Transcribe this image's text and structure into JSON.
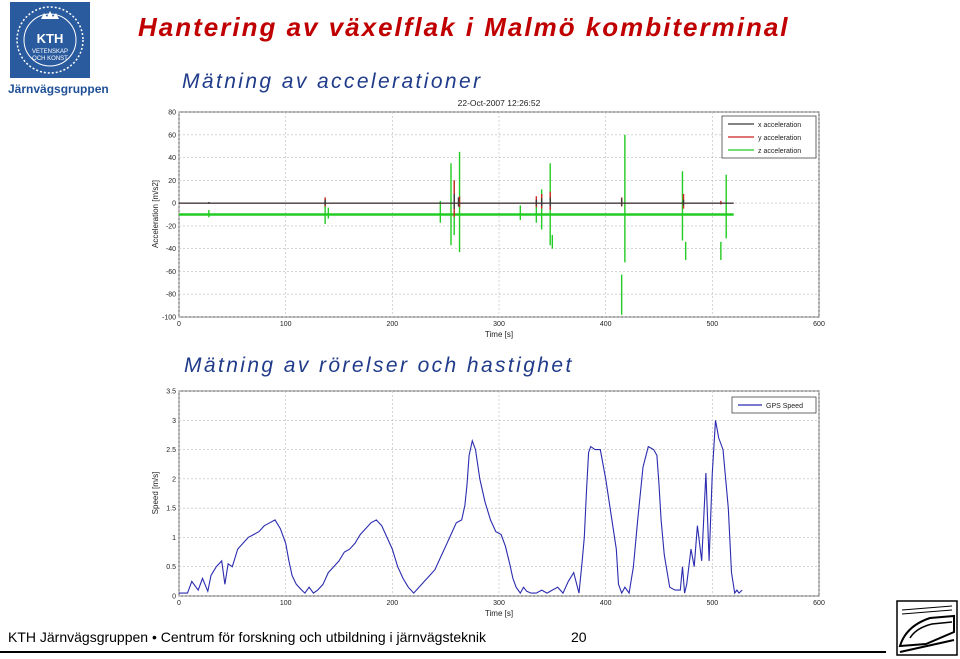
{
  "header": {
    "brand": "Järnvägsgruppen",
    "logo_text": [
      "KTH",
      "VETENSKAP",
      "OCH KONST"
    ],
    "title": "Hantering av växelflak i Malmö kombiterminal"
  },
  "sections": {
    "acc_heading": "Mätning av accelerationer",
    "speed_heading": "Mätning av rörelser och hastighet"
  },
  "footer": {
    "text": "KTH Järnvägsgruppen • Centrum för forskning och utbildning i järnvägsteknik",
    "page": "20"
  },
  "chart_data": [
    {
      "type": "line",
      "title": "22-Oct-2007 12:26:52",
      "xlabel": "Time [s]",
      "ylabel": "Acceleration [m/s2]",
      "xlim": [
        0,
        600
      ],
      "ylim": [
        -100,
        80
      ],
      "xticks": [
        0,
        100,
        200,
        300,
        400,
        500,
        600
      ],
      "yticks": [
        80,
        60,
        40,
        20,
        0,
        -20,
        -40,
        -60,
        -80,
        -100
      ],
      "grid": true,
      "legend": "top-right",
      "series": [
        {
          "name": "x acceleration",
          "color": "#3a3a3a",
          "baseline": 0,
          "spikes": [
            [
              28,
              1
            ],
            [
              137,
              3
            ],
            [
              258,
              8
            ],
            [
              262,
              5
            ],
            [
              335,
              3
            ],
            [
              340,
              4
            ],
            [
              348,
              5
            ],
            [
              415,
              4
            ],
            [
              473,
              3
            ]
          ]
        },
        {
          "name": "y acceleration",
          "color": "#cc2222",
          "baseline": 0,
          "spikes": [
            [
              137,
              5
            ],
            [
              258,
              20
            ],
            [
              263,
              6
            ],
            [
              335,
              6
            ],
            [
              340,
              8
            ],
            [
              348,
              10
            ],
            [
              415,
              5
            ],
            [
              473,
              8
            ],
            [
              508,
              2
            ]
          ]
        },
        {
          "name": "z acceleration",
          "color": "#22cc22",
          "baseline": -10,
          "spikes": [
            [
              28,
              4
            ],
            [
              137,
              14
            ],
            [
              140,
              6
            ],
            [
              245,
              12
            ],
            [
              255,
              45
            ],
            [
              258,
              30
            ],
            [
              263,
              55
            ],
            [
              320,
              8
            ],
            [
              335,
              12
            ],
            [
              340,
              22
            ],
            [
              348,
              45
            ],
            [
              350,
              -30
            ],
            [
              415,
              -88
            ],
            [
              418,
              70
            ],
            [
              472,
              38
            ],
            [
              475,
              -40
            ],
            [
              508,
              -40
            ],
            [
              513,
              35
            ]
          ]
        }
      ]
    },
    {
      "type": "line",
      "xlabel": "Time [s]",
      "ylabel": "Speed [m/s]",
      "xlim": [
        0,
        600
      ],
      "ylim": [
        0,
        3.5
      ],
      "xticks": [
        0,
        100,
        200,
        300,
        400,
        500,
        600
      ],
      "yticks": [
        3.5,
        3,
        2.5,
        2,
        1.5,
        1,
        0.5,
        0
      ],
      "grid": true,
      "legend": "top-right",
      "series": [
        {
          "name": "GPS Speed",
          "color": "#2b2bb0",
          "x": [
            0,
            8,
            12,
            18,
            22,
            27,
            30,
            35,
            40,
            43,
            46,
            50,
            55,
            60,
            65,
            70,
            75,
            80,
            85,
            90,
            95,
            100,
            103,
            106,
            110,
            115,
            118,
            122,
            126,
            130,
            135,
            140,
            145,
            150,
            155,
            160,
            165,
            170,
            175,
            180,
            185,
            190,
            195,
            200,
            205,
            210,
            215,
            220,
            225,
            230,
            235,
            240,
            245,
            250,
            255,
            260,
            265,
            268,
            270,
            272,
            275,
            278,
            282,
            287,
            292,
            297,
            302,
            306,
            310,
            313,
            316,
            320,
            323,
            326,
            330,
            335,
            340,
            345,
            350,
            355,
            360,
            365,
            370,
            375,
            378,
            380,
            382,
            384,
            386,
            390,
            395,
            400,
            405,
            410,
            412,
            415,
            418,
            422,
            426,
            430,
            435,
            440,
            445,
            448,
            450,
            452,
            455,
            460,
            465,
            470,
            472,
            474,
            476,
            480,
            483,
            486,
            490,
            494,
            497,
            500,
            503,
            506,
            510,
            515,
            518,
            521,
            523,
            525,
            528
          ],
          "y": [
            0.05,
            0.05,
            0.25,
            0.1,
            0.3,
            0.08,
            0.35,
            0.5,
            0.6,
            0.2,
            0.55,
            0.5,
            0.8,
            0.9,
            1.0,
            1.05,
            1.1,
            1.2,
            1.25,
            1.3,
            1.15,
            0.9,
            0.6,
            0.35,
            0.2,
            0.1,
            0.05,
            0.15,
            0.05,
            0.1,
            0.2,
            0.4,
            0.5,
            0.6,
            0.75,
            0.8,
            0.9,
            1.05,
            1.15,
            1.25,
            1.3,
            1.2,
            1.0,
            0.8,
            0.5,
            0.3,
            0.15,
            0.05,
            0.15,
            0.25,
            0.35,
            0.45,
            0.65,
            0.85,
            1.05,
            1.25,
            1.3,
            1.55,
            1.9,
            2.4,
            2.65,
            2.5,
            2.0,
            1.6,
            1.3,
            1.1,
            1.05,
            0.85,
            0.55,
            0.3,
            0.15,
            0.05,
            0.15,
            0.08,
            0.05,
            0.05,
            0.1,
            0.05,
            0.1,
            0.15,
            0.05,
            0.25,
            0.4,
            0.05,
            0.6,
            1.0,
            1.8,
            2.45,
            2.55,
            2.5,
            2.5,
            2.0,
            1.4,
            0.8,
            0.2,
            0.05,
            0.15,
            0.05,
            0.5,
            1.3,
            2.2,
            2.55,
            2.5,
            2.4,
            1.9,
            1.3,
            0.7,
            0.15,
            0.1,
            0.1,
            0.5,
            0.05,
            0.2,
            0.8,
            0.5,
            1.2,
            0.6,
            2.1,
            0.6,
            2.1,
            3.0,
            2.7,
            2.5,
            1.5,
            0.4,
            0.05,
            0.1,
            0.05,
            0.1
          ]
        }
      ]
    }
  ]
}
